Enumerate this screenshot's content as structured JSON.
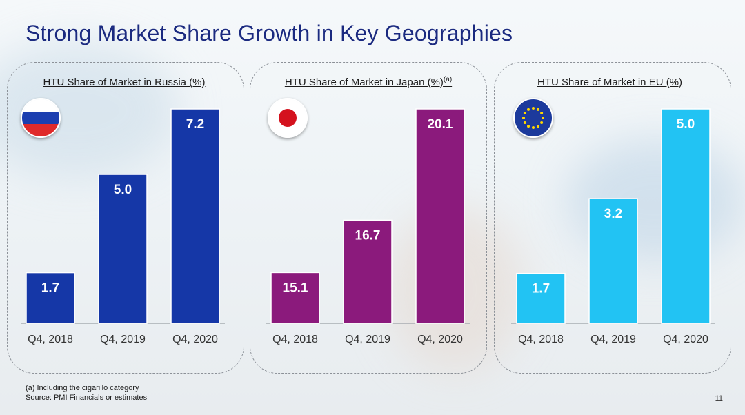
{
  "title": "Strong Market Share Growth in Key Geographies",
  "colors": {
    "russia": "#1537a7",
    "japan": "#8b1a7c",
    "eu": "#22c3f3",
    "title": "#1b2a80"
  },
  "chart_data": [
    {
      "type": "bar",
      "title": "HTU Share of Market in Russia (%)",
      "title_sup": "",
      "flag_icon": "russia-flag-icon",
      "categories": [
        "Q4, 2018",
        "Q4, 2019",
        "Q4, 2020"
      ],
      "values": [
        1.7,
        5.0,
        7.2
      ],
      "labels": [
        "1.7",
        "5.0",
        "7.2"
      ],
      "ylim": [
        0,
        7.2
      ]
    },
    {
      "type": "bar",
      "title": "HTU Share of Market in Japan (%)",
      "title_sup": "(a)",
      "flag_icon": "japan-flag-icon",
      "categories": [
        "Q4, 2018",
        "Q4, 2019",
        "Q4, 2020"
      ],
      "values": [
        15.1,
        16.7,
        20.1
      ],
      "labels": [
        "15.1",
        "16.7",
        "20.1"
      ],
      "ylim": [
        13.55,
        20.1
      ]
    },
    {
      "type": "bar",
      "title": "HTU Share of Market in EU (%)",
      "title_sup": "",
      "flag_icon": "eu-flag-icon",
      "categories": [
        "Q4, 2018",
        "Q4, 2019",
        "Q4, 2020"
      ],
      "values": [
        1.7,
        3.2,
        5.0
      ],
      "labels": [
        "1.7",
        "3.2",
        "5.0"
      ],
      "ylim": [
        0.7,
        5.0
      ]
    }
  ],
  "footnotes": {
    "note": "(a)  Including the cigarillo category",
    "source": "Source: PMI Financials or estimates"
  },
  "page_number": "11"
}
